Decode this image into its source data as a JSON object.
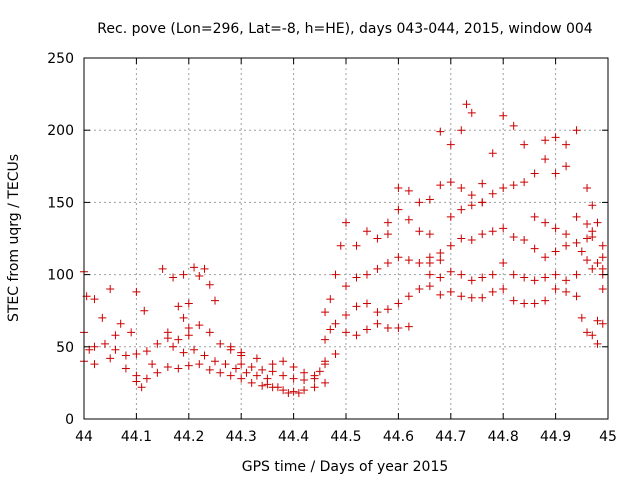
{
  "chart_data": {
    "type": "scatter",
    "title": "Rec. pove (Lon=296, Lat=-8, h=HE), days 043-044, 2015, window 004",
    "xlabel": "GPS time / Days of year 2015",
    "ylabel": "STEC from uqrg / TECUs",
    "xlim": [
      44,
      45
    ],
    "ylim": [
      0,
      250
    ],
    "xticks": [
      "44",
      "44.1",
      "44.2",
      "44.3",
      "44.4",
      "44.5",
      "44.6",
      "44.7",
      "44.8",
      "44.9",
      "45"
    ],
    "yticks": [
      "0",
      "50",
      "100",
      "150",
      "200",
      "250"
    ],
    "grid": true,
    "marker": "plus",
    "marker_color": "#cc0000",
    "series": [
      {
        "name": "",
        "points": [
          [
            44.0,
            102
          ],
          [
            44.005,
            85
          ],
          [
            44.02,
            83
          ],
          [
            44.035,
            70
          ],
          [
            44.05,
            90
          ],
          [
            44.06,
            58
          ],
          [
            44.07,
            66
          ],
          [
            44.09,
            60
          ],
          [
            44.1,
            88
          ],
          [
            44.115,
            75
          ],
          [
            44.0,
            60
          ],
          [
            44.01,
            48
          ],
          [
            44.02,
            50
          ],
          [
            44.04,
            52
          ],
          [
            44.06,
            48
          ],
          [
            44.08,
            44
          ],
          [
            44.1,
            45
          ],
          [
            44.12,
            47
          ],
          [
            44.14,
            52
          ],
          [
            44.16,
            56
          ],
          [
            44.0,
            40
          ],
          [
            44.02,
            38
          ],
          [
            44.05,
            42
          ],
          [
            44.08,
            35
          ],
          [
            44.1,
            30
          ],
          [
            44.12,
            28
          ],
          [
            44.14,
            32
          ],
          [
            44.1,
            26
          ],
          [
            44.11,
            22
          ],
          [
            44.13,
            38
          ],
          [
            44.15,
            104
          ],
          [
            44.17,
            98
          ],
          [
            44.19,
            100
          ],
          [
            44.21,
            105
          ],
          [
            44.22,
            99
          ],
          [
            44.23,
            104
          ],
          [
            44.24,
            93
          ],
          [
            44.25,
            82
          ],
          [
            44.2,
            80
          ],
          [
            44.18,
            78
          ],
          [
            44.16,
            60
          ],
          [
            44.18,
            55
          ],
          [
            44.2,
            63
          ],
          [
            44.22,
            65
          ],
          [
            44.24,
            60
          ],
          [
            44.26,
            52
          ],
          [
            44.28,
            48
          ],
          [
            44.3,
            44
          ],
          [
            44.2,
            58
          ],
          [
            44.19,
            70
          ],
          [
            44.17,
            50
          ],
          [
            44.19,
            46
          ],
          [
            44.21,
            48
          ],
          [
            44.23,
            44
          ],
          [
            44.25,
            40
          ],
          [
            44.27,
            38
          ],
          [
            44.29,
            35
          ],
          [
            44.31,
            32
          ],
          [
            44.33,
            30
          ],
          [
            44.35,
            28
          ],
          [
            44.16,
            36
          ],
          [
            44.18,
            35
          ],
          [
            44.2,
            37
          ],
          [
            44.22,
            38
          ],
          [
            44.24,
            34
          ],
          [
            44.26,
            32
          ],
          [
            44.28,
            30
          ],
          [
            44.3,
            28
          ],
          [
            44.32,
            25
          ],
          [
            44.34,
            23
          ],
          [
            44.36,
            22
          ],
          [
            44.38,
            20
          ],
          [
            44.4,
            19
          ],
          [
            44.42,
            20
          ],
          [
            44.44,
            22
          ],
          [
            44.46,
            25
          ],
          [
            44.35,
            24
          ],
          [
            44.37,
            22
          ],
          [
            44.39,
            18
          ],
          [
            44.41,
            18
          ],
          [
            44.3,
            38
          ],
          [
            44.32,
            36
          ],
          [
            44.34,
            34
          ],
          [
            44.36,
            33
          ],
          [
            44.38,
            30
          ],
          [
            44.4,
            28
          ],
          [
            44.42,
            27
          ],
          [
            44.44,
            28
          ],
          [
            44.45,
            33
          ],
          [
            44.46,
            38
          ],
          [
            44.28,
            50
          ],
          [
            44.3,
            46
          ],
          [
            44.33,
            42
          ],
          [
            44.36,
            38
          ],
          [
            44.38,
            40
          ],
          [
            44.4,
            36
          ],
          [
            44.42,
            32
          ],
          [
            44.44,
            30
          ],
          [
            44.46,
            40
          ],
          [
            44.48,
            45
          ],
          [
            44.46,
            55
          ],
          [
            44.47,
            62
          ],
          [
            44.48,
            66
          ],
          [
            44.5,
            60
          ],
          [
            44.52,
            58
          ],
          [
            44.54,
            62
          ],
          [
            44.56,
            66
          ],
          [
            44.58,
            63
          ],
          [
            44.6,
            63
          ],
          [
            44.62,
            64
          ],
          [
            44.46,
            74
          ],
          [
            44.47,
            83
          ],
          [
            44.48,
            100
          ],
          [
            44.5,
            72
          ],
          [
            44.52,
            78
          ],
          [
            44.54,
            80
          ],
          [
            44.56,
            74
          ],
          [
            44.58,
            76
          ],
          [
            44.6,
            80
          ],
          [
            44.62,
            85
          ],
          [
            44.5,
            92
          ],
          [
            44.52,
            98
          ],
          [
            44.54,
            100
          ],
          [
            44.56,
            104
          ],
          [
            44.58,
            108
          ],
          [
            44.6,
            112
          ],
          [
            44.62,
            110
          ],
          [
            44.64,
            108
          ],
          [
            44.66,
            108
          ],
          [
            44.68,
            110
          ],
          [
            44.49,
            120
          ],
          [
            44.5,
            136
          ],
          [
            44.52,
            120
          ],
          [
            44.54,
            130
          ],
          [
            44.56,
            125
          ],
          [
            44.58,
            128
          ],
          [
            44.6,
            145
          ],
          [
            44.62,
            138
          ],
          [
            44.64,
            130
          ],
          [
            44.66,
            128
          ],
          [
            44.58,
            136
          ],
          [
            44.6,
            160
          ],
          [
            44.62,
            158
          ],
          [
            44.64,
            150
          ],
          [
            44.66,
            152
          ],
          [
            44.68,
            162
          ],
          [
            44.7,
            164
          ],
          [
            44.72,
            160
          ],
          [
            44.74,
            155
          ],
          [
            44.76,
            150
          ],
          [
            44.68,
            199
          ],
          [
            44.7,
            190
          ],
          [
            44.72,
            200
          ],
          [
            44.73,
            218
          ],
          [
            44.74,
            212
          ],
          [
            44.76,
            163
          ],
          [
            44.78,
            184
          ],
          [
            44.8,
            210
          ],
          [
            44.82,
            203
          ],
          [
            44.84,
            190
          ],
          [
            44.64,
            90
          ],
          [
            44.66,
            92
          ],
          [
            44.68,
            86
          ],
          [
            44.7,
            88
          ],
          [
            44.72,
            85
          ],
          [
            44.74,
            84
          ],
          [
            44.76,
            84
          ],
          [
            44.78,
            88
          ],
          [
            44.8,
            90
          ],
          [
            44.82,
            82
          ],
          [
            44.84,
            80
          ],
          [
            44.86,
            80
          ],
          [
            44.88,
            82
          ],
          [
            44.9,
            90
          ],
          [
            44.92,
            88
          ],
          [
            44.94,
            85
          ],
          [
            44.95,
            70
          ],
          [
            44.96,
            60
          ],
          [
            44.97,
            58
          ],
          [
            44.98,
            52
          ],
          [
            44.66,
            100
          ],
          [
            44.68,
            98
          ],
          [
            44.7,
            102
          ],
          [
            44.72,
            100
          ],
          [
            44.74,
            96
          ],
          [
            44.76,
            98
          ],
          [
            44.78,
            100
          ],
          [
            44.8,
            108
          ],
          [
            44.82,
            100
          ],
          [
            44.84,
            98
          ],
          [
            44.86,
            96
          ],
          [
            44.88,
            98
          ],
          [
            44.9,
            100
          ],
          [
            44.92,
            96
          ],
          [
            44.94,
            100
          ],
          [
            44.96,
            110
          ],
          [
            44.97,
            104
          ],
          [
            44.98,
            108
          ],
          [
            44.99,
            112
          ],
          [
            44.99,
            100
          ],
          [
            44.66,
            112
          ],
          [
            44.68,
            115
          ],
          [
            44.7,
            120
          ],
          [
            44.72,
            125
          ],
          [
            44.74,
            124
          ],
          [
            44.76,
            128
          ],
          [
            44.78,
            130
          ],
          [
            44.8,
            132
          ],
          [
            44.82,
            126
          ],
          [
            44.84,
            124
          ],
          [
            44.86,
            118
          ],
          [
            44.88,
            112
          ],
          [
            44.9,
            116
          ],
          [
            44.92,
            120
          ],
          [
            44.94,
            122
          ],
          [
            44.96,
            125
          ],
          [
            44.97,
            130
          ],
          [
            44.98,
            136
          ],
          [
            44.99,
            120
          ],
          [
            44.95,
            116
          ],
          [
            44.7,
            140
          ],
          [
            44.72,
            145
          ],
          [
            44.74,
            148
          ],
          [
            44.76,
            150
          ],
          [
            44.78,
            156
          ],
          [
            44.8,
            160
          ],
          [
            44.82,
            162
          ],
          [
            44.84,
            164
          ],
          [
            44.86,
            170
          ],
          [
            44.88,
            180
          ],
          [
            44.88,
            193
          ],
          [
            44.9,
            195
          ],
          [
            44.92,
            190
          ],
          [
            44.94,
            200
          ],
          [
            44.96,
            160
          ],
          [
            44.97,
            148
          ],
          [
            44.98,
            108
          ],
          [
            44.99,
            104
          ],
          [
            44.9,
            170
          ],
          [
            44.92,
            175
          ],
          [
            44.86,
            140
          ],
          [
            44.88,
            136
          ],
          [
            44.9,
            132
          ],
          [
            44.92,
            128
          ],
          [
            44.94,
            140
          ],
          [
            44.96,
            135
          ],
          [
            44.97,
            126
          ],
          [
            44.98,
            68
          ],
          [
            44.99,
            66
          ],
          [
            44.99,
            90
          ]
        ]
      }
    ]
  }
}
